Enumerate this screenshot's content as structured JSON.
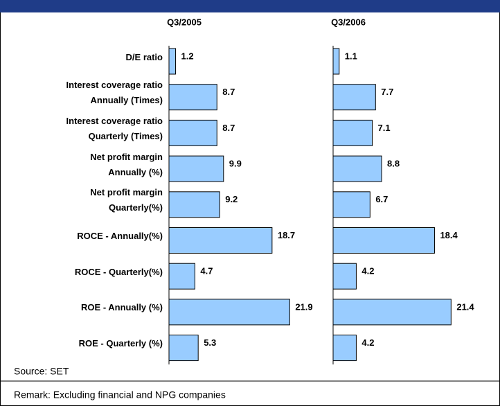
{
  "chart_data": {
    "type": "bar",
    "orientation": "horizontal",
    "categories": [
      "D/E ratio",
      "Interest coverage ratio\nAnnually (Times)",
      "Interest coverage ratio\nQuarterly (Times)",
      "Net profit margin\nAnnually (%)",
      "Net profit margin\nQuarterly(%)",
      "ROCE - Annually(%)",
      "ROCE - Quarterly(%)",
      "ROE - Annually (%)",
      "ROE - Quarterly (%)"
    ],
    "series": [
      {
        "name": "Q3/2005",
        "color": "#99ccff",
        "values": [
          1.2,
          8.7,
          8.7,
          9.9,
          9.2,
          18.7,
          4.7,
          21.9,
          5.3
        ]
      },
      {
        "name": "Q3/2006",
        "color": "#99ccff",
        "values": [
          1.1,
          7.7,
          7.1,
          8.8,
          6.7,
          18.4,
          4.2,
          21.4,
          4.2
        ]
      }
    ],
    "xlim": [
      0,
      25
    ],
    "source": "Source: SET",
    "remark": "Remark: Excluding financial and NPG companies"
  }
}
